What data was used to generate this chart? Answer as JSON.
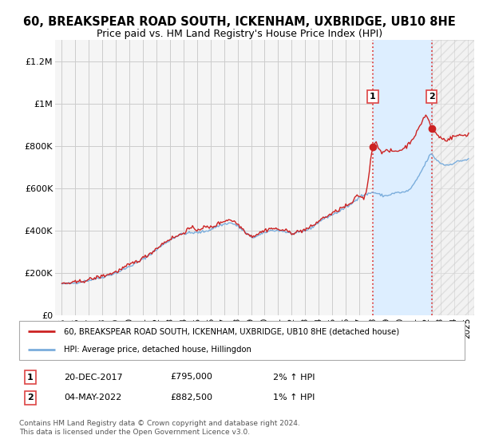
{
  "title": "60, BREAKSPEAR ROAD SOUTH, ICKENHAM, UXBRIDGE, UB10 8HE",
  "subtitle": "Price paid vs. HM Land Registry's House Price Index (HPI)",
  "title_fontsize": 10.5,
  "subtitle_fontsize": 9,
  "ylabel_ticks": [
    "£0",
    "£200K",
    "£400K",
    "£600K",
    "£800K",
    "£1M",
    "£1.2M"
  ],
  "ytick_values": [
    0,
    200000,
    400000,
    600000,
    800000,
    1000000,
    1200000
  ],
  "ylim": [
    0,
    1300000
  ],
  "background_color": "#ffffff",
  "plot_bg_color": "#f5f5f5",
  "grid_color": "#cccccc",
  "hpi_color": "#7aaddc",
  "price_color": "#cc2222",
  "vline_color": "#dd4444",
  "shade_color": "#ddeeff",
  "legend_entry1": "60, BREAKSPEAR ROAD SOUTH, ICKENHAM, UXBRIDGE, UB10 8HE (detached house)",
  "legend_entry2": "HPI: Average price, detached house, Hillingdon",
  "transaction1_date": "20-DEC-2017",
  "transaction1_price": "£795,000",
  "transaction1_hpi": "2% ↑ HPI",
  "transaction2_date": "04-MAY-2022",
  "transaction2_price": "£882,500",
  "transaction2_hpi": "1% ↑ HPI",
  "footer": "Contains HM Land Registry data © Crown copyright and database right 2024.\nThis data is licensed under the Open Government Licence v3.0.",
  "transaction1_x": 2018.0,
  "transaction1_y": 795000,
  "transaction2_x": 2022.35,
  "transaction2_y": 882500,
  "shade_x_start": 2018.0,
  "shade_x_end": 2022.35,
  "hatch_x_start": 2022.35,
  "hatch_x_end": 2025.5,
  "xlim_left": 1994.5,
  "xlim_right": 2025.5,
  "xtick_years": [
    1995,
    1996,
    1997,
    1998,
    1999,
    2000,
    2001,
    2002,
    2003,
    2004,
    2005,
    2006,
    2007,
    2008,
    2009,
    2010,
    2011,
    2012,
    2013,
    2014,
    2015,
    2016,
    2017,
    2018,
    2019,
    2020,
    2021,
    2022,
    2023,
    2024,
    2025
  ]
}
